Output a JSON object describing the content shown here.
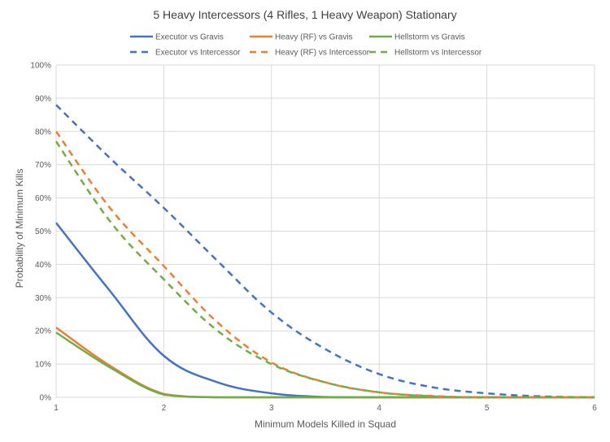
{
  "chart_data": {
    "type": "line",
    "title": "5 Heavy Intercessors (4 Rifles, 1 Heavy Weapon) Stationary",
    "xlabel": "Minimum Models Killed in Squad",
    "ylabel": "Probability of Minimum Kills",
    "xlim": [
      1,
      6
    ],
    "ylim": [
      0,
      100
    ],
    "x_ticks": [
      "1",
      "2",
      "3",
      "4",
      "5",
      "6"
    ],
    "y_ticks": [
      "0%",
      "10%",
      "20%",
      "30%",
      "40%",
      "50%",
      "60%",
      "70%",
      "80%",
      "90%",
      "100%"
    ],
    "grid": true,
    "legend_position": "top",
    "series": [
      {
        "name": "Executor vs Gravis",
        "color": "#4472C4",
        "dashed": false,
        "x": [
          1,
          1.5,
          2,
          2.5,
          3,
          3.5,
          4,
          5,
          6
        ],
        "values": [
          52.5,
          32,
          12.5,
          4.5,
          1.2,
          0.1,
          0,
          0,
          0
        ]
      },
      {
        "name": "Heavy (RF) vs Gravis",
        "color": "#ED7D31",
        "dashed": false,
        "x": [
          1,
          1.5,
          2,
          2.5,
          3,
          4,
          5,
          6
        ],
        "values": [
          21,
          9.5,
          1,
          0,
          0,
          0,
          0,
          0
        ]
      },
      {
        "name": "Hellstorm vs Gravis",
        "color": "#70AD47",
        "dashed": false,
        "x": [
          1,
          1.5,
          2,
          2.5,
          3,
          4,
          5,
          6
        ],
        "values": [
          19.5,
          9,
          0.8,
          0,
          0,
          0,
          0,
          0
        ]
      },
      {
        "name": "Executor vs Intercessor",
        "color": "#4472C4",
        "dashed": true,
        "x": [
          1,
          1.5,
          2,
          2.5,
          3,
          3.5,
          4,
          4.5,
          5,
          5.5,
          6
        ],
        "values": [
          88,
          72,
          57,
          41,
          25.5,
          14.5,
          7,
          3,
          1.2,
          0.3,
          0
        ]
      },
      {
        "name": "Heavy (RF) vs Intercessor",
        "color": "#ED7D31",
        "dashed": true,
        "x": [
          1,
          1.5,
          2,
          2.5,
          3,
          3.5,
          4,
          4.5,
          5,
          6
        ],
        "values": [
          80,
          57,
          39.5,
          22.5,
          10.5,
          4.5,
          1.5,
          0.4,
          0,
          0
        ]
      },
      {
        "name": "Hellstorm vs Intercessor",
        "color": "#70AD47",
        "dashed": true,
        "x": [
          1,
          1.5,
          2,
          2.5,
          3,
          3.5,
          4,
          4.5,
          5,
          6
        ],
        "values": [
          77,
          53,
          35.5,
          20,
          10,
          4.5,
          1.5,
          0.3,
          0,
          0
        ]
      }
    ]
  }
}
